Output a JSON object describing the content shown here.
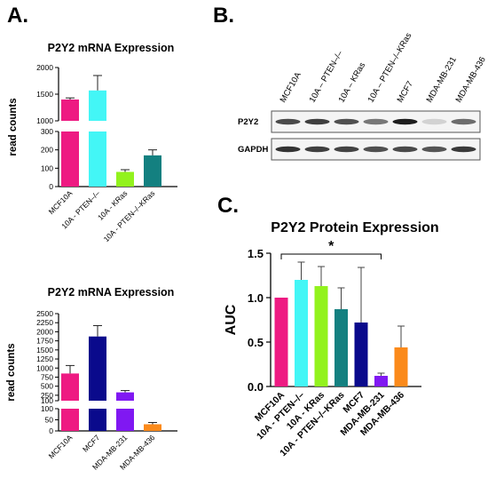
{
  "panels": {
    "a": "A.",
    "b": "B.",
    "c": "C."
  },
  "blot": {
    "lanes": [
      "MCF10A",
      "10A – PTEN–/–",
      "10A – KRas",
      "10A – PTEN–/–KRas",
      "MCF7",
      "MDA-MB-231",
      "MDA-MB-436"
    ],
    "rows": [
      {
        "label": "P2Y2",
        "intensity": [
          0.75,
          0.8,
          0.72,
          0.55,
          0.95,
          0.15,
          0.6
        ]
      },
      {
        "label": "GAPDH",
        "intensity": [
          0.85,
          0.8,
          0.78,
          0.72,
          0.75,
          0.7,
          0.82
        ]
      }
    ]
  },
  "colors": {
    "MCF10A": "#ee1a82",
    "10A - PTEN-/-": "#43f6f6",
    "10A - KRas": "#92f21d",
    "10A - PTEN-/-KRas": "#138080",
    "MCF7": "#0a0a8c",
    "MDA-MB-231": "#8018f2",
    "MDA-MB-436": "#fb8a1b"
  },
  "chart_data": [
    {
      "id": "a1",
      "type": "bar",
      "title": "P2Y2 mRNA Expression",
      "ylabel": "read counts",
      "categories": [
        "MCF10A",
        "10A - PTEN–/–",
        "10A - KRas",
        "10A - PTEN–/–KRas"
      ],
      "colorKeys": [
        "MCF10A",
        "10A - PTEN-/-",
        "10A - KRas",
        "10A - PTEN-/-KRas"
      ],
      "values": [
        1400,
        1570,
        80,
        170
      ],
      "errors": [
        30,
        280,
        12,
        30
      ],
      "broken_axis": {
        "lower": [
          0,
          300
        ],
        "upper": [
          1000,
          2000
        ]
      },
      "yticks_lower": [
        "0",
        "100",
        "200",
        "300"
      ],
      "yticks_upper": [
        "1000",
        "1500",
        "2000"
      ]
    },
    {
      "id": "a2",
      "type": "bar",
      "title": "P2Y2 mRNA Expression",
      "ylabel": "read counts",
      "categories": [
        "MCF10A",
        "MCF7",
        "MDA-MB-231",
        "MDA-MB-436"
      ],
      "colorKeys": [
        "MCF10A",
        "MCF7",
        "MDA-MB-231",
        "MDA-MB-436"
      ],
      "values": [
        850,
        1870,
        330,
        30
      ],
      "errors": [
        220,
        300,
        50,
        8
      ],
      "broken_axis": {
        "lower": [
          0,
          100
        ],
        "upper": [
          100,
          2500
        ]
      },
      "yticks_lower": [
        "0",
        "50",
        "100"
      ],
      "yticks_upper": [
        "100",
        "250",
        "500",
        "750",
        "1000",
        "1250",
        "1500",
        "1750",
        "2000",
        "2250",
        "2500"
      ]
    },
    {
      "id": "c",
      "type": "bar",
      "title": "P2Y2 Protein Expression",
      "ylabel": "AUC",
      "ylim": [
        0,
        1.5
      ],
      "yticks": [
        "0.0",
        "0.5",
        "1.0",
        "1.5"
      ],
      "categories": [
        "MCF10A",
        "10A - PTEN–/–",
        "10A - KRas",
        "10A - PTEN–/–KRas",
        "MCF7",
        "MDA-MB-231",
        "MDA-MB-436"
      ],
      "colorKeys": [
        "MCF10A",
        "10A - PTEN-/-",
        "10A - KRas",
        "10A - PTEN-/-KRas",
        "MCF7",
        "MDA-MB-231",
        "MDA-MB-436"
      ],
      "values": [
        1.0,
        1.2,
        1.13,
        0.87,
        0.72,
        0.12,
        0.44
      ],
      "errors": [
        0,
        0.2,
        0.22,
        0.24,
        0.62,
        0.03,
        0.24
      ],
      "annotation": {
        "text": "*",
        "from": "MCF10A",
        "to": "MDA-MB-231"
      }
    }
  ]
}
